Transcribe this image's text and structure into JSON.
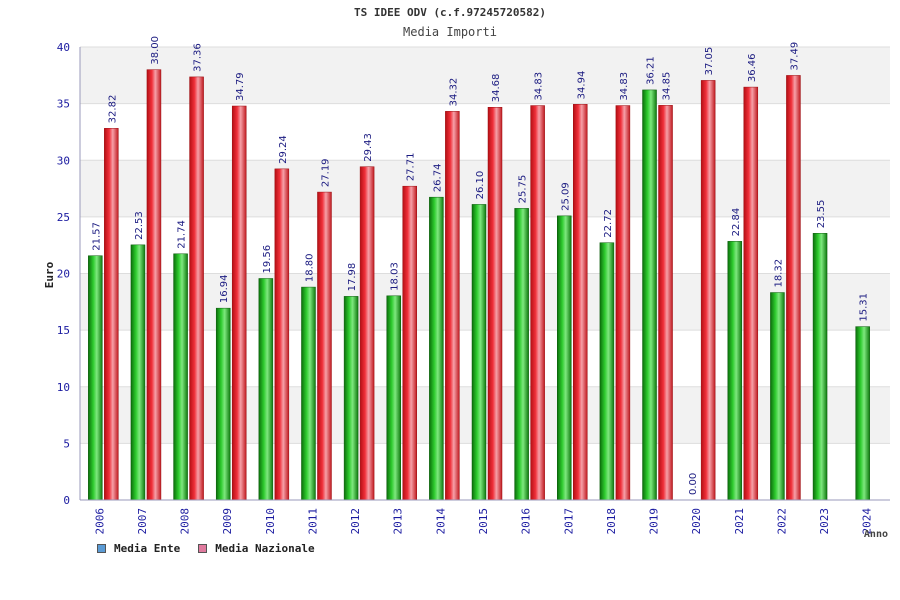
{
  "title": "TS IDEE ODV (c.f.97245720582)",
  "subtitle": "Media Importi",
  "chart_data": {
    "type": "bar",
    "xlabel": "Anno",
    "ylabel": "Euro",
    "ylim": [
      0,
      40
    ],
    "yticks": [
      0,
      5,
      10,
      15,
      20,
      25,
      30,
      35,
      40
    ],
    "grid": true,
    "legend_position": "bottom-left",
    "categories": [
      "2006",
      "2007",
      "2008",
      "2009",
      "2010",
      "2011",
      "2012",
      "2013",
      "2014",
      "2015",
      "2016",
      "2017",
      "2018",
      "2019",
      "2020",
      "2021",
      "2022",
      "2023",
      "2024"
    ],
    "series": [
      {
        "name": "Media Ente",
        "color": "#1fa81f",
        "legend_color": "#5b9bd5",
        "values": [
          21.57,
          22.53,
          21.74,
          16.94,
          19.56,
          18.8,
          17.98,
          18.03,
          26.74,
          26.1,
          25.75,
          25.09,
          22.72,
          36.21,
          0.0,
          22.84,
          18.32,
          23.55,
          15.31
        ],
        "labels": [
          "21.57",
          "22.53",
          "21.74",
          "16.94",
          "19.56",
          "18.80",
          "17.98",
          "18.03",
          "26.74",
          "26.10",
          "25.75",
          "25.09",
          "22.72",
          "36.21",
          "0.00",
          "22.84",
          "18.32",
          "23.55",
          "15.31"
        ]
      },
      {
        "name": "Media Nazionale",
        "color": "#e8262b",
        "legend_color": "#e07a9e",
        "values": [
          32.82,
          38.0,
          37.36,
          34.79,
          29.24,
          27.19,
          29.43,
          27.71,
          34.32,
          34.68,
          34.83,
          34.94,
          34.83,
          34.85,
          37.05,
          36.46,
          37.49,
          null,
          null
        ],
        "labels": [
          "32.82",
          "38.00",
          "37.36",
          "34.79",
          "29.24",
          "27.19",
          "29.43",
          "27.71",
          "34.32",
          "34.68",
          "34.83",
          "34.94",
          "34.83",
          "34.85",
          "37.05",
          "36.46",
          "37.49",
          null,
          null
        ]
      }
    ]
  }
}
